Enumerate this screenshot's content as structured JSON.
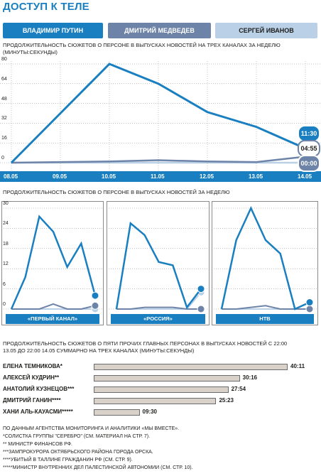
{
  "title": "ДОСТУП К ТЕЛЕ",
  "tabs": [
    "ВЛАДИМИР ПУТИН",
    "ДМИТРИЙ МЕДВЕДЕВ",
    "СЕРГЕЙ ИВАНОВ"
  ],
  "colors": {
    "putin": "#1a7fc0",
    "medvedev": "#6d84a8",
    "ivanov": "#b9d0e6"
  },
  "chart1_caption": "ПРОДОЛЖИТЕЛЬНОСТЬ СЮЖЕТОВ О ПЕРСОНЕ В ВЫПУСКАХ НОВОСТЕЙ НА ТРЕХ КАНАЛАХ ЗА НЕДЕЛЮ (МИНУТЫ:СЕКУНДЫ)",
  "chart2_caption": "ПРОДОЛЖИТЕЛЬНОСТЬ СЮЖЕТОВ О ПЕРСОНЕ В ВЫПУСКАХ НОВОСТЕЙ ЗА НЕДЕЛЮ",
  "chart3_caption": "ПРОДОЛЖИТЕЛЬНОСТЬ СЮЖЕТОВ О ПЯТИ ПРОЧИХ ГЛАВНЫХ ПЕРСОНАХ В ВЫПУСКАХ НОВОСТЕЙ С 22:00 13.05 ДО 22:00 14.05 СУММАРНО НА ТРЕХ КАНАЛАХ (МИНУТЫ:СЕКУНДЫ)",
  "bubbles": [
    "11:30",
    "04:55",
    "00:00"
  ],
  "notes": [
    "ПО ДАННЫМ АГЕНТСТВА МОНИТОРИНГА И АНАЛИТИКИ «МЫ ВМЕСТЕ».",
    "*СОЛИСТКА ГРУППЫ \"СЕРЕБРО\" (СМ. МАТЕРИАЛ НА СТР. 7).",
    "** МИНИСТР ФИНАНСОВ РФ.",
    "***ЗАМПРОКУРОРА ОКТЯБРЬСКОГО РАЙОНА ГОРОДА ОРСКА.",
    "****УБИТЫЙ В ТАЛЛИНЕ ГРАЖДАНИН РФ (СМ. СТР. 9).",
    "*****МИНИСТР ВНУТРЕННИХ ДЕЛ ПАЛЕСТИНСКОЙ АВТОНОМИИ (СМ. СТР. 10)."
  ],
  "chart_data": [
    {
      "type": "line",
      "title": "",
      "x": [
        "08.05",
        "09.05",
        "10.05",
        "11.05",
        "12.05",
        "13.05",
        "14.05"
      ],
      "yticks": [
        "0",
        "16",
        "32",
        "48",
        "64",
        "80"
      ],
      "ylim": [
        0,
        80
      ],
      "series": [
        {
          "values": [
            0,
            40,
            80,
            64,
            41,
            29,
            11.5
          ]
        },
        {
          "values": [
            0,
            0.5,
            1,
            2,
            1,
            0.5,
            4.9
          ]
        },
        {
          "values": [
            0,
            0,
            0,
            0,
            0,
            0,
            0
          ]
        }
      ]
    },
    {
      "type": "line",
      "panels": [
        {
          "label": "«ПЕРВЫЙ КАНАЛ»",
          "series": [
            {
              "values": [
                0,
                9.5,
                27.5,
                23,
                12.5,
                19.5,
                4
              ]
            },
            {
              "values": [
                0,
                0,
                0,
                1.5,
                0,
                0,
                1
              ]
            },
            {
              "values": [
                0,
                0,
                0,
                0,
                0,
                0,
                0
              ]
            }
          ]
        },
        {
          "label": "«РОССИЯ»",
          "series": [
            {
              "values": [
                0,
                25.5,
                22,
                14,
                13,
                0.5,
                6
              ]
            },
            {
              "values": [
                0,
                0,
                0.5,
                0.5,
                0.5,
                0,
                0
              ]
            },
            {
              "values": [
                0,
                0,
                0,
                0,
                0,
                0,
                5
              ]
            }
          ]
        },
        {
          "label": "НТВ",
          "series": [
            {
              "values": [
                0,
                20.5,
                30,
                20.5,
                16.5,
                0,
                2
              ]
            },
            {
              "values": [
                0,
                0,
                0.5,
                1,
                0,
                0,
                0
              ]
            },
            {
              "values": [
                0,
                0,
                0,
                0,
                0,
                0,
                0
              ]
            }
          ]
        }
      ],
      "yticks": [
        "0",
        "6",
        "12",
        "18",
        "24",
        "30"
      ],
      "ylim": [
        0,
        30
      ]
    },
    {
      "type": "bar",
      "categories": [
        "ЕЛЕНА ТЕМНИКОВА*",
        "АЛЕКСЕЙ КУДРИН**",
        "АНАТОЛИЙ КУЗНЕЦОВ***",
        "ДМИТРИЙ ГАНИН****",
        "ХАНИ АЛЬ-КАУАСМИ*****"
      ],
      "labels": [
        "40:11",
        "30:16",
        "27:54",
        "25:23",
        "09:30"
      ],
      "values": [
        40.18,
        30.27,
        27.9,
        25.38,
        9.5
      ]
    }
  ]
}
